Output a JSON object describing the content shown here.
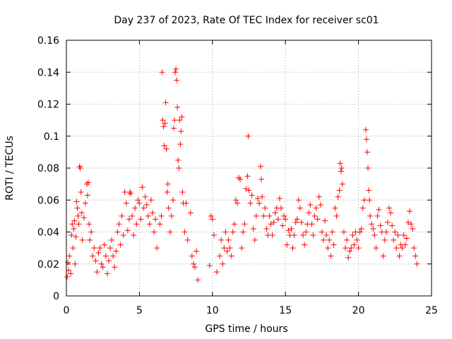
{
  "chart_data": {
    "type": "scatter",
    "title": "Day 237 of 2023, Rate Of TEC Index for receiver sc01",
    "xlabel": "GPS time / hours",
    "ylabel": "ROTI / TECUs",
    "xlim": [
      0,
      25
    ],
    "ylim": [
      0,
      0.16
    ],
    "xticks": [
      0,
      5,
      10,
      15,
      20,
      25
    ],
    "yticks": [
      0,
      0.02,
      0.04,
      0.06,
      0.08,
      0.1,
      0.12,
      0.14,
      0.16
    ],
    "xtick_labels": [
      "0",
      "5",
      "10",
      "15",
      "20",
      "25"
    ],
    "ytick_labels": [
      "0",
      "0.02",
      "0.04",
      "0.06",
      "0.08",
      "0.1",
      "0.12",
      "0.14",
      "0.16"
    ],
    "grid": true,
    "marker": "+",
    "color": "#ff0000",
    "series": [
      {
        "points": [
          [
            0.05,
            0.012
          ],
          [
            0.1,
            0.021
          ],
          [
            0.15,
            0.016
          ],
          [
            0.2,
            0.025
          ],
          [
            0.3,
            0.014
          ],
          [
            0.35,
            0.038
          ],
          [
            0.4,
            0.045
          ],
          [
            0.45,
            0.03
          ],
          [
            0.5,
            0.042
          ],
          [
            0.55,
            0.047
          ],
          [
            0.6,
            0.02
          ],
          [
            0.65,
            0.037
          ],
          [
            0.7,
            0.059
          ],
          [
            0.75,
            0.055
          ],
          [
            0.8,
            0.05
          ],
          [
            0.85,
            0.045
          ],
          [
            0.9,
            0.081
          ],
          [
            0.95,
            0.08
          ],
          [
            1.0,
            0.065
          ],
          [
            1.05,
            0.052
          ],
          [
            1.1,
            0.035
          ],
          [
            1.2,
            0.049
          ],
          [
            1.3,
            0.058
          ],
          [
            1.4,
            0.07
          ],
          [
            1.45,
            0.063
          ],
          [
            1.5,
            0.071
          ],
          [
            1.55,
            0.045
          ],
          [
            1.6,
            0.035
          ],
          [
            1.7,
            0.04
          ],
          [
            1.8,
            0.025
          ],
          [
            1.9,
            0.03
          ],
          [
            2.0,
            0.022
          ],
          [
            2.1,
            0.015
          ],
          [
            2.2,
            0.027
          ],
          [
            2.3,
            0.03
          ],
          [
            2.4,
            0.02
          ],
          [
            2.5,
            0.018
          ],
          [
            2.6,
            0.032
          ],
          [
            2.7,
            0.025
          ],
          [
            2.8,
            0.014
          ],
          [
            2.9,
            0.022
          ],
          [
            3.0,
            0.03
          ],
          [
            3.1,
            0.035
          ],
          [
            3.2,
            0.025
          ],
          [
            3.3,
            0.018
          ],
          [
            3.4,
            0.028
          ],
          [
            3.5,
            0.04
          ],
          [
            3.6,
            0.045
          ],
          [
            3.7,
            0.032
          ],
          [
            3.8,
            0.05
          ],
          [
            3.9,
            0.038
          ],
          [
            4.0,
            0.065
          ],
          [
            4.1,
            0.058
          ],
          [
            4.2,
            0.041
          ],
          [
            4.3,
            0.048
          ],
          [
            4.35,
            0.065
          ],
          [
            4.4,
            0.064
          ],
          [
            4.5,
            0.05
          ],
          [
            4.6,
            0.038
          ],
          [
            4.7,
            0.055
          ],
          [
            4.8,
            0.045
          ],
          [
            4.9,
            0.06
          ],
          [
            5.0,
            0.058
          ],
          [
            5.1,
            0.048
          ],
          [
            5.2,
            0.068
          ],
          [
            5.3,
            0.055
          ],
          [
            5.4,
            0.062
          ],
          [
            5.5,
            0.057
          ],
          [
            5.6,
            0.05
          ],
          [
            5.7,
            0.045
          ],
          [
            5.8,
            0.06
          ],
          [
            5.9,
            0.052
          ],
          [
            6.0,
            0.04
          ],
          [
            6.1,
            0.048
          ],
          [
            6.2,
            0.03
          ],
          [
            6.4,
            0.045
          ],
          [
            6.5,
            0.05
          ],
          [
            6.55,
            0.14
          ],
          [
            6.6,
            0.11
          ],
          [
            6.65,
            0.106
          ],
          [
            6.7,
            0.094
          ],
          [
            6.75,
            0.108
          ],
          [
            6.8,
            0.121
          ],
          [
            6.85,
            0.092
          ],
          [
            6.9,
            0.065
          ],
          [
            6.95,
            0.07
          ],
          [
            7.0,
            0.055
          ],
          [
            7.1,
            0.04
          ],
          [
            7.2,
            0.05
          ],
          [
            7.3,
            0.06
          ],
          [
            7.35,
            0.105
          ],
          [
            7.4,
            0.11
          ],
          [
            7.45,
            0.14
          ],
          [
            7.5,
            0.142
          ],
          [
            7.55,
            0.135
          ],
          [
            7.6,
            0.118
          ],
          [
            7.65,
            0.085
          ],
          [
            7.7,
            0.08
          ],
          [
            7.75,
            0.11
          ],
          [
            7.8,
            0.095
          ],
          [
            7.85,
            0.103
          ],
          [
            7.9,
            0.112
          ],
          [
            7.95,
            0.065
          ],
          [
            8.0,
            0.058
          ],
          [
            8.1,
            0.04
          ],
          [
            8.2,
            0.058
          ],
          [
            8.3,
            0.035
          ],
          [
            8.5,
            0.052
          ],
          [
            8.6,
            0.025
          ],
          [
            8.7,
            0.02
          ],
          [
            8.8,
            0.018
          ],
          [
            8.9,
            0.028
          ],
          [
            9.0,
            0.01
          ],
          [
            9.8,
            0.019
          ],
          [
            9.9,
            0.05
          ],
          [
            10.0,
            0.048
          ],
          [
            10.1,
            0.038
          ],
          [
            10.3,
            0.015
          ],
          [
            10.5,
            0.025
          ],
          [
            10.6,
            0.035
          ],
          [
            10.7,
            0.02
          ],
          [
            10.8,
            0.03
          ],
          [
            10.9,
            0.04
          ],
          [
            11.0,
            0.028
          ],
          [
            11.1,
            0.035
          ],
          [
            11.2,
            0.03
          ],
          [
            11.3,
            0.025
          ],
          [
            11.4,
            0.04
          ],
          [
            11.5,
            0.045
          ],
          [
            11.6,
            0.06
          ],
          [
            11.7,
            0.058
          ],
          [
            11.8,
            0.074
          ],
          [
            11.9,
            0.073
          ],
          [
            12.0,
            0.03
          ],
          [
            12.1,
            0.04
          ],
          [
            12.2,
            0.045
          ],
          [
            12.3,
            0.067
          ],
          [
            12.4,
            0.075
          ],
          [
            12.45,
            0.1
          ],
          [
            12.5,
            0.066
          ],
          [
            12.6,
            0.058
          ],
          [
            12.7,
            0.063
          ],
          [
            12.8,
            0.042
          ],
          [
            12.9,
            0.035
          ],
          [
            13.0,
            0.05
          ],
          [
            13.1,
            0.061
          ],
          [
            13.2,
            0.058
          ],
          [
            13.3,
            0.081
          ],
          [
            13.35,
            0.073
          ],
          [
            13.4,
            0.062
          ],
          [
            13.5,
            0.05
          ],
          [
            13.6,
            0.055
          ],
          [
            13.7,
            0.042
          ],
          [
            13.8,
            0.038
          ],
          [
            13.9,
            0.05
          ],
          [
            14.0,
            0.045
          ],
          [
            14.1,
            0.038
          ],
          [
            14.2,
            0.046
          ],
          [
            14.3,
            0.052
          ],
          [
            14.4,
            0.055
          ],
          [
            14.5,
            0.048
          ],
          [
            14.6,
            0.061
          ],
          [
            14.7,
            0.055
          ],
          [
            14.8,
            0.044
          ],
          [
            14.9,
            0.05
          ],
          [
            15.0,
            0.048
          ],
          [
            15.1,
            0.032
          ],
          [
            15.2,
            0.041
          ],
          [
            15.3,
            0.038
          ],
          [
            15.4,
            0.042
          ],
          [
            15.5,
            0.03
          ],
          [
            15.6,
            0.038
          ],
          [
            15.7,
            0.046
          ],
          [
            15.8,
            0.048
          ],
          [
            15.9,
            0.06
          ],
          [
            16.0,
            0.055
          ],
          [
            16.1,
            0.046
          ],
          [
            16.2,
            0.038
          ],
          [
            16.3,
            0.032
          ],
          [
            16.4,
            0.04
          ],
          [
            16.5,
            0.045
          ],
          [
            16.6,
            0.052
          ],
          [
            16.7,
            0.057
          ],
          [
            16.8,
            0.045
          ],
          [
            16.9,
            0.038
          ],
          [
            17.0,
            0.05
          ],
          [
            17.1,
            0.055
          ],
          [
            17.2,
            0.048
          ],
          [
            17.3,
            0.062
          ],
          [
            17.4,
            0.057
          ],
          [
            17.5,
            0.04
          ],
          [
            17.6,
            0.035
          ],
          [
            17.7,
            0.047
          ],
          [
            17.8,
            0.038
          ],
          [
            17.9,
            0.03
          ],
          [
            18.0,
            0.035
          ],
          [
            18.1,
            0.025
          ],
          [
            18.2,
            0.04
          ],
          [
            18.3,
            0.032
          ],
          [
            18.4,
            0.055
          ],
          [
            18.5,
            0.05
          ],
          [
            18.6,
            0.062
          ],
          [
            18.7,
            0.066
          ],
          [
            18.75,
            0.083
          ],
          [
            18.8,
            0.078
          ],
          [
            18.85,
            0.08
          ],
          [
            18.9,
            0.07
          ],
          [
            19.0,
            0.04
          ],
          [
            19.1,
            0.03
          ],
          [
            19.2,
            0.035
          ],
          [
            19.3,
            0.024
          ],
          [
            19.4,
            0.028
          ],
          [
            19.5,
            0.03
          ],
          [
            19.6,
            0.038
          ],
          [
            19.7,
            0.032
          ],
          [
            19.8,
            0.04
          ],
          [
            19.9,
            0.035
          ],
          [
            20.0,
            0.03
          ],
          [
            20.1,
            0.04
          ],
          [
            20.2,
            0.042
          ],
          [
            20.3,
            0.055
          ],
          [
            20.4,
            0.06
          ],
          [
            20.5,
            0.104
          ],
          [
            20.55,
            0.098
          ],
          [
            20.6,
            0.09
          ],
          [
            20.65,
            0.08
          ],
          [
            20.7,
            0.066
          ],
          [
            20.75,
            0.06
          ],
          [
            20.8,
            0.05
          ],
          [
            20.9,
            0.045
          ],
          [
            21.0,
            0.042
          ],
          [
            21.1,
            0.038
          ],
          [
            21.2,
            0.03
          ],
          [
            21.3,
            0.05
          ],
          [
            21.4,
            0.054
          ],
          [
            21.5,
            0.044
          ],
          [
            21.6,
            0.04
          ],
          [
            21.7,
            0.025
          ],
          [
            21.8,
            0.035
          ],
          [
            21.9,
            0.04
          ],
          [
            22.0,
            0.046
          ],
          [
            22.1,
            0.055
          ],
          [
            22.2,
            0.052
          ],
          [
            22.3,
            0.044
          ],
          [
            22.4,
            0.035
          ],
          [
            22.5,
            0.04
          ],
          [
            22.6,
            0.03
          ],
          [
            22.7,
            0.038
          ],
          [
            22.8,
            0.025
          ],
          [
            22.9,
            0.032
          ],
          [
            23.0,
            0.03
          ],
          [
            23.1,
            0.038
          ],
          [
            23.2,
            0.032
          ],
          [
            23.3,
            0.036
          ],
          [
            23.4,
            0.046
          ],
          [
            23.5,
            0.053
          ],
          [
            23.6,
            0.045
          ],
          [
            23.7,
            0.042
          ],
          [
            23.8,
            0.03
          ],
          [
            23.9,
            0.025
          ],
          [
            24.0,
            0.02
          ]
        ]
      }
    ]
  }
}
